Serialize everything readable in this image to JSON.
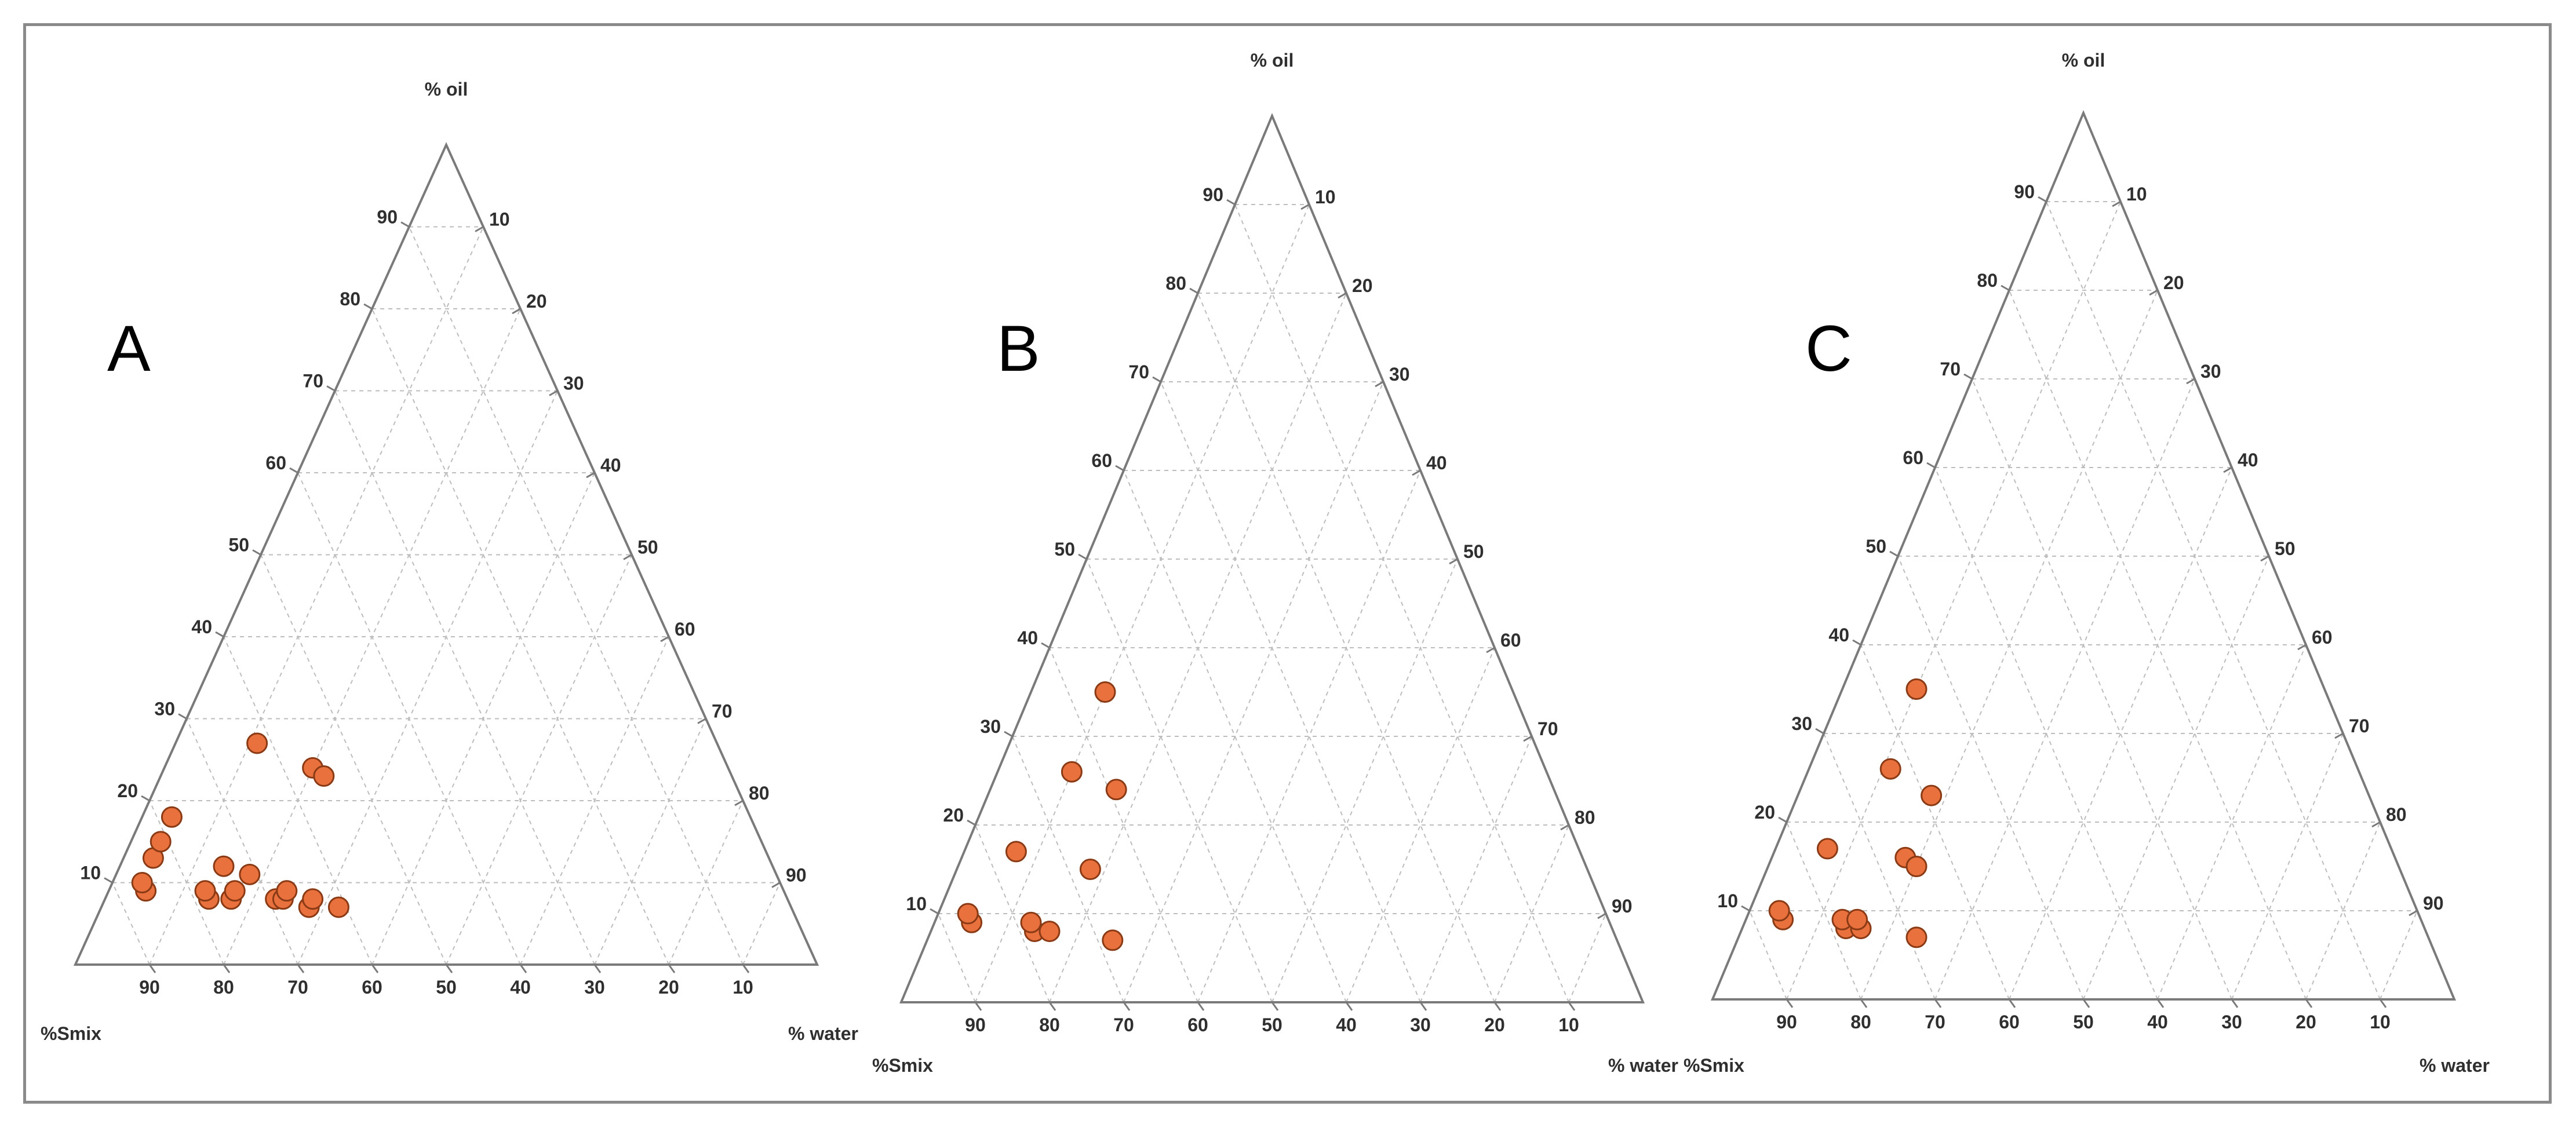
{
  "figure": {
    "colors": {
      "point_fill": "#e9713e",
      "point_stroke": "#8a3a14",
      "axis": "#7a7a7a",
      "grid": "#bdbdbd",
      "text": "#2f2f2f"
    }
  },
  "chart_data": [
    {
      "type": "scatter",
      "subtype": "ternary",
      "label": "A",
      "axes": {
        "top": "% oil",
        "left": "%Smix",
        "right": "% water"
      },
      "ticks": {
        "left": [
          "10",
          "20",
          "30",
          "40",
          "50",
          "60",
          "70",
          "80",
          "90"
        ],
        "right": [
          "10",
          "20",
          "30",
          "40",
          "50",
          "60",
          "70",
          "80",
          "90"
        ],
        "bottom": [
          "90",
          "80",
          "70",
          "60",
          "50",
          "40",
          "30",
          "20",
          "10"
        ]
      },
      "grid": true,
      "points": [
        {
          "oil": 9,
          "water": 5,
          "smix": 86
        },
        {
          "oil": 10,
          "water": 4,
          "smix": 86
        },
        {
          "oil": 13,
          "water": 4,
          "smix": 83
        },
        {
          "oil": 15,
          "water": 4,
          "smix": 81
        },
        {
          "oil": 18,
          "water": 4,
          "smix": 78
        },
        {
          "oil": 27,
          "water": 11,
          "smix": 62
        },
        {
          "oil": 8,
          "water": 14,
          "smix": 78
        },
        {
          "oil": 9,
          "water": 13,
          "smix": 78
        },
        {
          "oil": 12,
          "water": 14,
          "smix": 74
        },
        {
          "oil": 8,
          "water": 17,
          "smix": 75
        },
        {
          "oil": 9,
          "water": 17,
          "smix": 74
        },
        {
          "oil": 11,
          "water": 18,
          "smix": 71
        },
        {
          "oil": 24,
          "water": 20,
          "smix": 56
        },
        {
          "oil": 23,
          "water": 22,
          "smix": 55
        },
        {
          "oil": 8,
          "water": 23,
          "smix": 69
        },
        {
          "oil": 8,
          "water": 24,
          "smix": 68
        },
        {
          "oil": 9,
          "water": 24,
          "smix": 67
        },
        {
          "oil": 7,
          "water": 28,
          "smix": 65
        },
        {
          "oil": 8,
          "water": 28,
          "smix": 64
        },
        {
          "oil": 7,
          "water": 32,
          "smix": 61
        }
      ]
    },
    {
      "type": "scatter",
      "subtype": "ternary",
      "label": "B",
      "axes": {
        "top": "% oil",
        "left": "%Smix",
        "right": "% water"
      },
      "ticks": {
        "left": [
          "10",
          "20",
          "30",
          "40",
          "50",
          "60",
          "70",
          "80",
          "90"
        ],
        "right": [
          "10",
          "20",
          "30",
          "40",
          "50",
          "60",
          "70",
          "80",
          "90"
        ],
        "bottom": [
          "90",
          "80",
          "70",
          "60",
          "50",
          "40",
          "30",
          "20",
          "10"
        ]
      },
      "grid": true,
      "points": [
        {
          "oil": 9,
          "water": 5,
          "smix": 86
        },
        {
          "oil": 10,
          "water": 4,
          "smix": 86
        },
        {
          "oil": 17,
          "water": 7,
          "smix": 76
        },
        {
          "oil": 8,
          "water": 14,
          "smix": 78
        },
        {
          "oil": 9,
          "water": 13,
          "smix": 78
        },
        {
          "oil": 8,
          "water": 16,
          "smix": 76
        },
        {
          "oil": 26,
          "water": 10,
          "smix": 64
        },
        {
          "oil": 15,
          "water": 18,
          "smix": 67
        },
        {
          "oil": 35,
          "water": 10,
          "smix": 55
        },
        {
          "oil": 24,
          "water": 17,
          "smix": 59
        },
        {
          "oil": 7,
          "water": 25,
          "smix": 68
        }
      ]
    },
    {
      "type": "scatter",
      "subtype": "ternary",
      "label": "C",
      "axes": {
        "top": "% oil",
        "left": "%Smix",
        "right": "% water"
      },
      "ticks": {
        "left": [
          "10",
          "20",
          "30",
          "40",
          "50",
          "60",
          "70",
          "80",
          "90"
        ],
        "right": [
          "10",
          "20",
          "30",
          "40",
          "50",
          "60",
          "70",
          "80",
          "90"
        ],
        "bottom": [
          "90",
          "80",
          "70",
          "60",
          "50",
          "40",
          "30",
          "20",
          "10"
        ]
      },
      "grid": true,
      "points": [
        {
          "oil": 9,
          "water": 5,
          "smix": 86
        },
        {
          "oil": 10,
          "water": 4,
          "smix": 86
        },
        {
          "oil": 17,
          "water": 7,
          "smix": 76
        },
        {
          "oil": 8,
          "water": 14,
          "smix": 78
        },
        {
          "oil": 9,
          "water": 13,
          "smix": 78
        },
        {
          "oil": 8,
          "water": 16,
          "smix": 76
        },
        {
          "oil": 9,
          "water": 15,
          "smix": 76
        },
        {
          "oil": 26,
          "water": 11,
          "smix": 63
        },
        {
          "oil": 16,
          "water": 18,
          "smix": 66
        },
        {
          "oil": 15,
          "water": 20,
          "smix": 65
        },
        {
          "oil": 35,
          "water": 10,
          "smix": 55
        },
        {
          "oil": 23,
          "water": 18,
          "smix": 59
        },
        {
          "oil": 7,
          "water": 24,
          "smix": 69
        }
      ]
    }
  ]
}
